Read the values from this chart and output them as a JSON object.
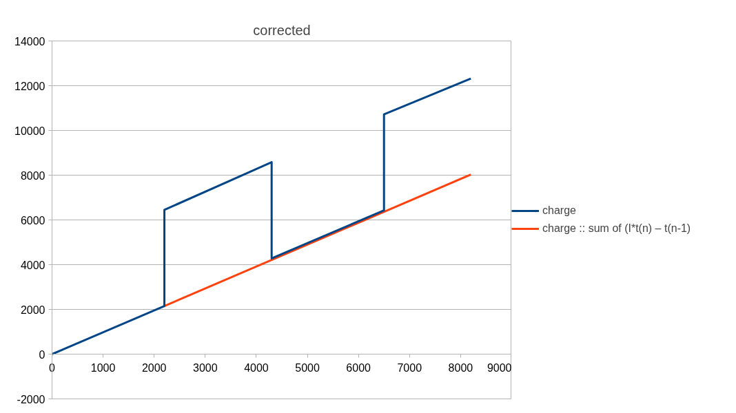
{
  "chart_data": {
    "type": "line",
    "title": "corrected",
    "series": [
      {
        "name": "charge",
        "color": "#004586",
        "x": [
          0,
          2200,
          2200,
          4300,
          4300,
          6500,
          6500,
          8200
        ],
        "values": [
          0,
          2150,
          6450,
          8580,
          4280,
          6430,
          10720,
          12320
        ]
      },
      {
        "name": "charge :: sum of (I*t(n) – t(n-1)",
        "color": "#ff420e",
        "x": [
          2200,
          8200
        ],
        "values": [
          2150,
          8030
        ]
      }
    ],
    "xlim": [
      0,
      9000
    ],
    "xticks": [
      0,
      1000,
      2000,
      3000,
      4000,
      5000,
      6000,
      7000,
      8000,
      9000
    ],
    "ylim": [
      -2000,
      14000
    ],
    "yticks": [
      -2000,
      0,
      2000,
      4000,
      6000,
      8000,
      10000,
      12000,
      14000
    ],
    "grid": "y",
    "legend": "right"
  }
}
